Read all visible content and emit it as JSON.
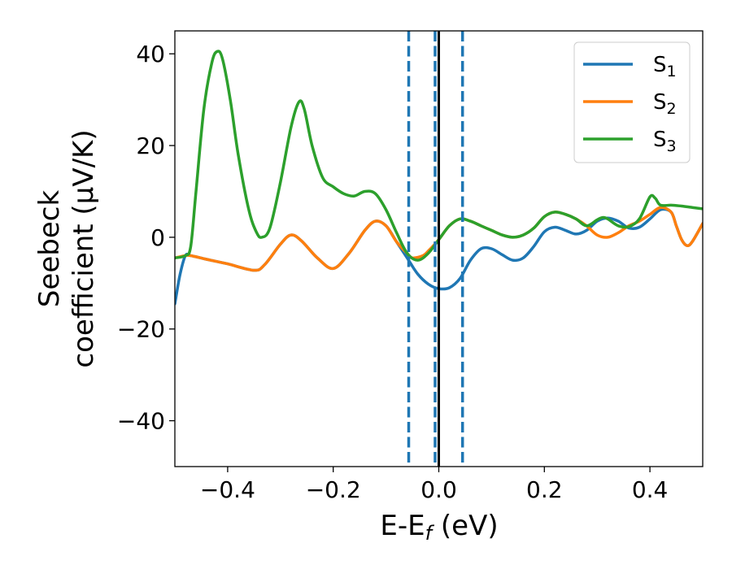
{
  "chart_data": {
    "type": "line",
    "xlabel": "E-E",
    "xlabel_sub": "f",
    "xlabel_unit": " (eV)",
    "ylabel_line1": "Seebeck",
    "ylabel_line2": "coefficient  (μV/K)",
    "xlim": [
      -0.5,
      0.5
    ],
    "ylim": [
      -50,
      45
    ],
    "xticks": [
      -0.4,
      -0.2,
      0.0,
      0.2,
      0.4
    ],
    "xtick_labels": [
      "−0.4",
      "−0.2",
      "0.0",
      "0.2",
      "0.4"
    ],
    "yticks": [
      -40,
      -20,
      0,
      20,
      40
    ],
    "ytick_labels": [
      "−40",
      "−20",
      "0",
      "20",
      "40"
    ],
    "grid": false,
    "legend_position": "top-right",
    "vertical_lines": [
      {
        "x": -0.057,
        "style": "dashed",
        "color": "#1f77b4"
      },
      {
        "x": -0.007,
        "style": "dashed",
        "color": "#1f77b4"
      },
      {
        "x": 0.045,
        "style": "dashed",
        "color": "#1f77b4"
      },
      {
        "x": 0.0,
        "style": "solid",
        "color": "#000000"
      }
    ],
    "series": [
      {
        "name": "S",
        "name_sub": "1",
        "color": "#1f77b4",
        "points": [
          [
            -0.5,
            -14.5
          ],
          [
            -0.49,
            -8
          ],
          [
            -0.48,
            -4
          ],
          [
            -0.47,
            -4
          ],
          [
            -0.44,
            -4.8
          ],
          [
            -0.4,
            -5.8
          ],
          [
            -0.35,
            -7.2
          ],
          [
            -0.33,
            -6
          ],
          [
            -0.3,
            -1.5
          ],
          [
            -0.28,
            0.5
          ],
          [
            -0.26,
            -0.8
          ],
          [
            -0.23,
            -4.5
          ],
          [
            -0.2,
            -6.8
          ],
          [
            -0.17,
            -3.5
          ],
          [
            -0.14,
            1.5
          ],
          [
            -0.12,
            3.5
          ],
          [
            -0.1,
            2.5
          ],
          [
            -0.08,
            -1
          ],
          [
            -0.06,
            -4.5
          ],
          [
            -0.04,
            -8
          ],
          [
            -0.02,
            -10.2
          ],
          [
            0.0,
            -11.2
          ],
          [
            0.02,
            -11
          ],
          [
            0.04,
            -9
          ],
          [
            0.06,
            -5
          ],
          [
            0.08,
            -2.5
          ],
          [
            0.1,
            -2.5
          ],
          [
            0.12,
            -3.8
          ],
          [
            0.14,
            -5
          ],
          [
            0.16,
            -4.5
          ],
          [
            0.18,
            -2
          ],
          [
            0.2,
            1.2
          ],
          [
            0.22,
            2.2
          ],
          [
            0.24,
            1.5
          ],
          [
            0.26,
            0.7
          ],
          [
            0.28,
            1.5
          ],
          [
            0.3,
            3.5
          ],
          [
            0.32,
            4.2
          ],
          [
            0.34,
            3.5
          ],
          [
            0.36,
            2
          ],
          [
            0.38,
            2.2
          ],
          [
            0.4,
            4
          ],
          [
            0.42,
            6
          ],
          [
            0.44,
            5.5
          ],
          [
            0.45,
            2.5
          ],
          [
            0.46,
            -0.5
          ],
          [
            0.47,
            -1.8
          ],
          [
            0.48,
            -1
          ],
          [
            0.5,
            3
          ]
        ]
      },
      {
        "name": "S",
        "name_sub": "2",
        "color": "#ff7f0e",
        "points": [
          [
            -0.5,
            -4.5
          ],
          [
            -0.48,
            -4
          ],
          [
            -0.47,
            -4
          ],
          [
            -0.44,
            -4.8
          ],
          [
            -0.4,
            -5.8
          ],
          [
            -0.35,
            -7.2
          ],
          [
            -0.33,
            -6
          ],
          [
            -0.3,
            -1.5
          ],
          [
            -0.28,
            0.5
          ],
          [
            -0.26,
            -0.8
          ],
          [
            -0.23,
            -4.5
          ],
          [
            -0.2,
            -6.8
          ],
          [
            -0.17,
            -3.5
          ],
          [
            -0.14,
            1.5
          ],
          [
            -0.12,
            3.5
          ],
          [
            -0.1,
            2.5
          ],
          [
            -0.08,
            -1
          ],
          [
            -0.06,
            -3.5
          ],
          [
            -0.05,
            -4.5
          ],
          [
            -0.03,
            -4
          ],
          [
            -0.02,
            -3
          ],
          [
            0.0,
            -0.5
          ],
          [
            0.02,
            2.5
          ],
          [
            0.04,
            4
          ],
          [
            0.06,
            3.5
          ],
          [
            0.08,
            2.5
          ],
          [
            0.1,
            1.5
          ],
          [
            0.12,
            0.5
          ],
          [
            0.14,
            0
          ],
          [
            0.16,
            0.5
          ],
          [
            0.18,
            2
          ],
          [
            0.2,
            4.5
          ],
          [
            0.22,
            5.5
          ],
          [
            0.24,
            5
          ],
          [
            0.26,
            4
          ],
          [
            0.28,
            2.5
          ],
          [
            0.3,
            0.5
          ],
          [
            0.32,
            0
          ],
          [
            0.34,
            1
          ],
          [
            0.36,
            2.5
          ],
          [
            0.38,
            3.5
          ],
          [
            0.4,
            5
          ],
          [
            0.42,
            6.5
          ],
          [
            0.44,
            5.5
          ],
          [
            0.45,
            2.5
          ],
          [
            0.46,
            -0.5
          ],
          [
            0.47,
            -1.8
          ],
          [
            0.48,
            -1
          ],
          [
            0.5,
            3
          ]
        ]
      },
      {
        "name": "S",
        "name_sub": "3",
        "color": "#2ca02c",
        "points": [
          [
            -0.5,
            -4.5
          ],
          [
            -0.48,
            -4
          ],
          [
            -0.47,
            -2
          ],
          [
            -0.46,
            10
          ],
          [
            -0.445,
            28
          ],
          [
            -0.43,
            38
          ],
          [
            -0.42,
            40.5
          ],
          [
            -0.41,
            39
          ],
          [
            -0.395,
            30
          ],
          [
            -0.38,
            18
          ],
          [
            -0.36,
            6
          ],
          [
            -0.345,
            1
          ],
          [
            -0.335,
            0
          ],
          [
            -0.32,
            2
          ],
          [
            -0.3,
            12
          ],
          [
            -0.28,
            24
          ],
          [
            -0.265,
            29.5
          ],
          [
            -0.255,
            28
          ],
          [
            -0.24,
            20
          ],
          [
            -0.22,
            13
          ],
          [
            -0.2,
            11
          ],
          [
            -0.18,
            9.5
          ],
          [
            -0.16,
            9
          ],
          [
            -0.14,
            10
          ],
          [
            -0.12,
            9.5
          ],
          [
            -0.1,
            6
          ],
          [
            -0.08,
            1
          ],
          [
            -0.06,
            -3.5
          ],
          [
            -0.04,
            -5
          ],
          [
            -0.02,
            -3.5
          ],
          [
            0.0,
            -0.5
          ],
          [
            0.02,
            2.5
          ],
          [
            0.04,
            4
          ],
          [
            0.06,
            3.5
          ],
          [
            0.08,
            2.5
          ],
          [
            0.1,
            1.5
          ],
          [
            0.12,
            0.5
          ],
          [
            0.14,
            0
          ],
          [
            0.16,
            0.5
          ],
          [
            0.18,
            2
          ],
          [
            0.2,
            4.5
          ],
          [
            0.22,
            5.5
          ],
          [
            0.24,
            5
          ],
          [
            0.26,
            4
          ],
          [
            0.28,
            2.5
          ],
          [
            0.3,
            3.8
          ],
          [
            0.31,
            4.3
          ],
          [
            0.32,
            4
          ],
          [
            0.34,
            2.5
          ],
          [
            0.36,
            2.3
          ],
          [
            0.38,
            4
          ],
          [
            0.4,
            8.8
          ],
          [
            0.41,
            8.5
          ],
          [
            0.42,
            7
          ],
          [
            0.44,
            7
          ],
          [
            0.46,
            6.8
          ],
          [
            0.48,
            6.5
          ],
          [
            0.5,
            6.2
          ]
        ]
      }
    ]
  }
}
